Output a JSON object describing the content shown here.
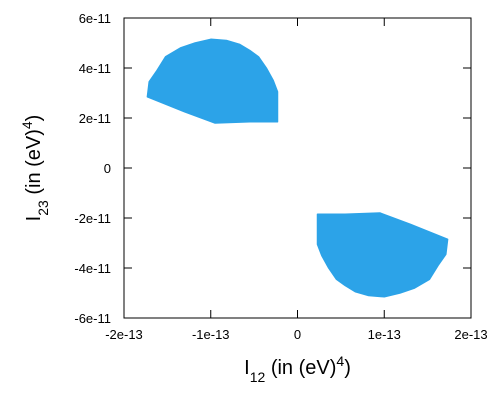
{
  "chart_data": {
    "type": "scatter",
    "title": "",
    "xlabel": {
      "symbol": "I",
      "subscript": "12",
      "unit_text": " (in (eV)",
      "superscript": "4",
      "close": ")"
    },
    "ylabel": {
      "symbol": "I",
      "subscript": "23",
      "unit_text": " (in (eV)",
      "superscript": "4",
      "close": ")"
    },
    "xlim": [
      -2e-13,
      2e-13
    ],
    "ylim": [
      -6e-11,
      6e-11
    ],
    "x_ticks": [
      {
        "value": -2e-13,
        "label": "-2e-13"
      },
      {
        "value": -1e-13,
        "label": "-1e-13"
      },
      {
        "value": 0,
        "label": "0"
      },
      {
        "value": 1e-13,
        "label": "1e-13"
      },
      {
        "value": 2e-13,
        "label": "2e-13"
      }
    ],
    "y_ticks": [
      {
        "value": -6e-11,
        "label": "-6e-11"
      },
      {
        "value": -4e-11,
        "label": "-4e-11"
      },
      {
        "value": -2e-11,
        "label": "-2e-11"
      },
      {
        "value": 0,
        "label": "0"
      },
      {
        "value": 2e-11,
        "label": "2e-11"
      },
      {
        "value": 4e-11,
        "label": "4e-11"
      },
      {
        "value": 6e-11,
        "label": "6e-11"
      }
    ],
    "grid": false,
    "legend": "none",
    "color": "#2ca3e8",
    "series": [
      {
        "region": "upper-left",
        "outline": [
          {
            "x": -1.73e-13,
            "y": 2.85e-11
          },
          {
            "x": -1.71e-13,
            "y": 3.45e-11
          },
          {
            "x": -1.62e-13,
            "y": 3.9e-11
          },
          {
            "x": -1.52e-13,
            "y": 4.45e-11
          },
          {
            "x": -1.35e-13,
            "y": 4.8e-11
          },
          {
            "x": -1.18e-13,
            "y": 5e-11
          },
          {
            "x": -1e-13,
            "y": 5.15e-11
          },
          {
            "x": -8.2e-14,
            "y": 5.1e-11
          },
          {
            "x": -6.7e-14,
            "y": 4.95e-11
          },
          {
            "x": -5.5e-14,
            "y": 4.7e-11
          },
          {
            "x": -4.5e-14,
            "y": 4.45e-11
          },
          {
            "x": -3.6e-14,
            "y": 4e-11
          },
          {
            "x": -2.8e-14,
            "y": 3.5e-11
          },
          {
            "x": -2.3e-14,
            "y": 3.05e-11
          },
          {
            "x": -2.3e-14,
            "y": 1.85e-11
          },
          {
            "x": -5.5e-14,
            "y": 1.85e-11
          },
          {
            "x": -9.5e-14,
            "y": 1.8e-11
          },
          {
            "x": -1.3e-13,
            "y": 2.25e-11
          }
        ]
      },
      {
        "region": "lower-right",
        "outline": [
          {
            "x": 2.3e-14,
            "y": -1.85e-11
          },
          {
            "x": 2.3e-14,
            "y": -3.05e-11
          },
          {
            "x": 2.8e-14,
            "y": -3.5e-11
          },
          {
            "x": 3.6e-14,
            "y": -4e-11
          },
          {
            "x": 4.5e-14,
            "y": -4.45e-11
          },
          {
            "x": 5.5e-14,
            "y": -4.7e-11
          },
          {
            "x": 6.7e-14,
            "y": -4.95e-11
          },
          {
            "x": 8.2e-14,
            "y": -5.1e-11
          },
          {
            "x": 1e-13,
            "y": -5.15e-11
          },
          {
            "x": 1.18e-13,
            "y": -5e-11
          },
          {
            "x": 1.35e-13,
            "y": -4.8e-11
          },
          {
            "x": 1.52e-13,
            "y": -4.45e-11
          },
          {
            "x": 1.62e-13,
            "y": -3.9e-11
          },
          {
            "x": 1.71e-13,
            "y": -3.45e-11
          },
          {
            "x": 1.73e-13,
            "y": -2.85e-11
          },
          {
            "x": 1.3e-13,
            "y": -2.25e-11
          },
          {
            "x": 9.5e-14,
            "y": -1.8e-11
          },
          {
            "x": 5.5e-14,
            "y": -1.85e-11
          }
        ]
      }
    ]
  }
}
